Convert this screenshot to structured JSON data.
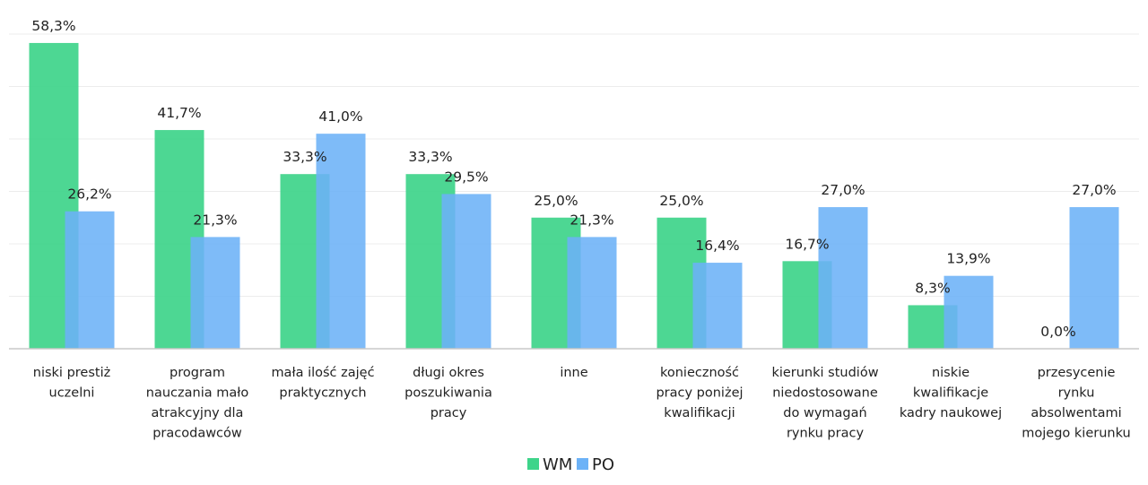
{
  "chart_data": {
    "type": "bar",
    "categories": [
      [
        "niski prestiż",
        "uczelni"
      ],
      [
        "program",
        "nauczania mało",
        "atrakcyjny dla",
        "pracodawców"
      ],
      [
        "mała ilość zajęć",
        "praktycznych"
      ],
      [
        "długi okres",
        "poszukiwania",
        "pracy"
      ],
      [
        "inne"
      ],
      [
        "konieczność",
        "pracy poniżej",
        "kwalifikacji"
      ],
      [
        "kierunki studiów",
        "niedostosowane",
        "do wymagań",
        "rynku pracy"
      ],
      [
        "niskie",
        "kwalifikacje",
        "kadry naukowej"
      ],
      [
        "przesycenie",
        "rynku",
        "absolwentami",
        "mojego kierunku"
      ]
    ],
    "series": [
      {
        "name": "WM",
        "color": "#3ed48a",
        "values": [
          58.3,
          41.7,
          33.3,
          33.3,
          25.0,
          25.0,
          16.7,
          8.3,
          0.0
        ],
        "labels": [
          "58,3%",
          "41,7%",
          "33,3%",
          "33,3%",
          "25,0%",
          "25,0%",
          "16,7%",
          "8,3%",
          "0,0%"
        ]
      },
      {
        "name": "PO",
        "color": "#6cb2f7",
        "values": [
          26.2,
          21.3,
          41.0,
          29.5,
          21.3,
          16.4,
          27.0,
          13.9,
          27.0
        ],
        "labels": [
          "26,2%",
          "21,3%",
          "41,0%",
          "29,5%",
          "21,3%",
          "16,4%",
          "27,0%",
          "13,9%",
          "27,0%"
        ]
      }
    ],
    "ylim": [
      0,
      60
    ],
    "grid": true,
    "legend_position": "bottom"
  }
}
